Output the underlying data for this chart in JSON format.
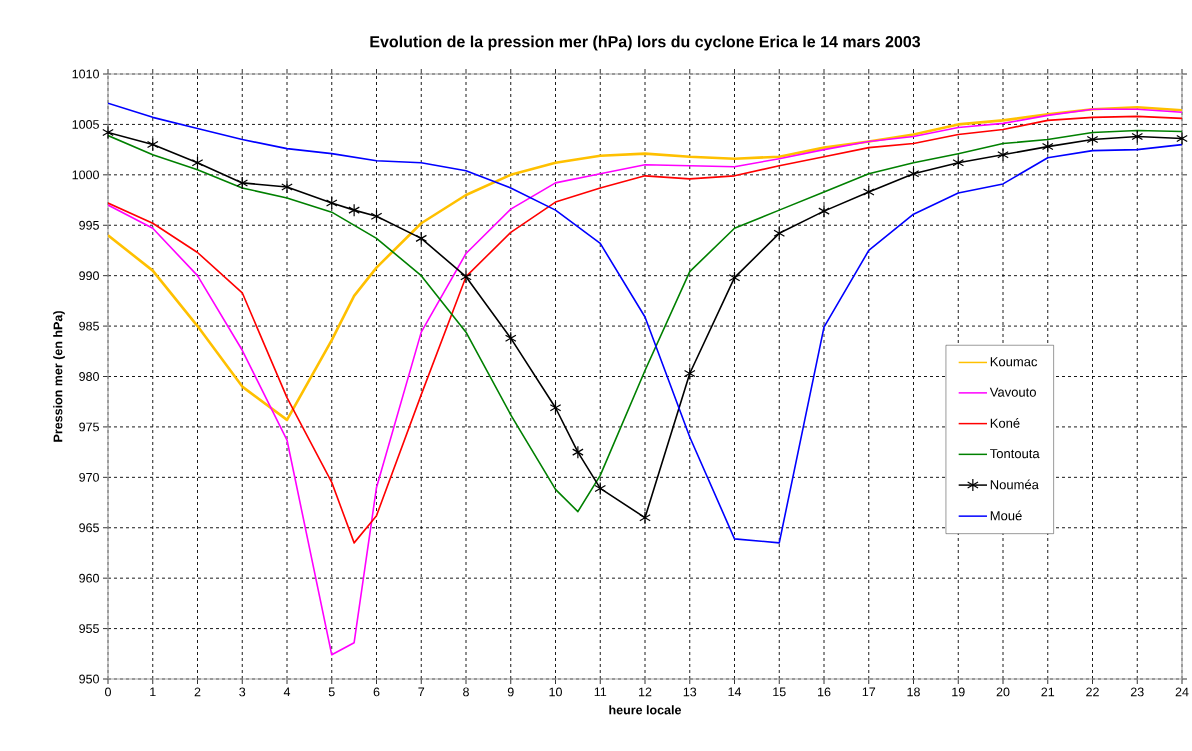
{
  "chart_data": {
    "type": "line",
    "title": "Evolution de la pression mer (hPa) lors du cyclone Erica le 14 mars 2003",
    "xlabel": "heure locale",
    "ylabel": "Pression mer (en hPa)",
    "xlim": [
      0,
      24
    ],
    "xticks": [
      0,
      1,
      2,
      3,
      4,
      5,
      6,
      7,
      8,
      9,
      10,
      11,
      12,
      13,
      14,
      15,
      16,
      17,
      18,
      19,
      20,
      21,
      22,
      23,
      24
    ],
    "ylim": [
      950,
      1010
    ],
    "yticks": [
      950,
      955,
      960,
      965,
      970,
      975,
      980,
      985,
      990,
      995,
      1000,
      1005,
      1010
    ],
    "grid": true,
    "legend": "right",
    "line_style": "solid",
    "series": [
      {
        "name": "Koumac",
        "color": "#ffc000",
        "x": [
          0,
          1,
          2,
          3,
          4,
          5,
          5.5,
          6,
          7,
          8,
          9,
          10,
          11,
          12,
          13,
          14,
          15,
          16,
          17,
          18,
          19,
          20,
          21,
          22,
          23,
          24
        ],
        "values": [
          994,
          990.5,
          985,
          979,
          975.7,
          983.6,
          988,
          990.8,
          995.2,
          998,
          1000,
          1001.2,
          1001.9,
          1002.1,
          1001.8,
          1001.6,
          1001.8,
          1002.7,
          1003.3,
          1004,
          1005,
          1005.4,
          1006,
          1006.5,
          1006.7,
          1006.4
        ]
      },
      {
        "name": "Vavouto",
        "color": "#ff00ff",
        "x": [
          0,
          1,
          2,
          3,
          4,
          5,
          5.5,
          6,
          7,
          8,
          9,
          10,
          11,
          12,
          13,
          14,
          15,
          16,
          17,
          18,
          19,
          20,
          21,
          22,
          23,
          24
        ],
        "values": [
          997,
          994.7,
          990,
          982.6,
          973.7,
          952.4,
          953.6,
          969,
          984.4,
          992.2,
          996.6,
          999.2,
          1000.1,
          1001,
          1000.9,
          1000.8,
          1001.6,
          1002.5,
          1003.3,
          1003.8,
          1004.7,
          1005.1,
          1005.9,
          1006.5,
          1006.5,
          1006.2
        ]
      },
      {
        "name": "Koné",
        "color": "#ff0000",
        "x": [
          0,
          1,
          2,
          3,
          4,
          5,
          5.5,
          6,
          7,
          8,
          9,
          10,
          11,
          12,
          13,
          14,
          15,
          16,
          17,
          18,
          19,
          20,
          21,
          22,
          23,
          24
        ],
        "values": [
          997.2,
          995.2,
          992.3,
          988.3,
          977.9,
          969.5,
          963.5,
          966.2,
          978.2,
          989.9,
          994.3,
          997.3,
          998.7,
          999.9,
          999.6,
          999.9,
          1000.9,
          1001.8,
          1002.7,
          1003.1,
          1004,
          1004.5,
          1005.4,
          1005.7,
          1005.8,
          1005.6
        ]
      },
      {
        "name": "Tontouta",
        "color": "#008000",
        "x": [
          0,
          1,
          2,
          3,
          4,
          5,
          6,
          7,
          8,
          9,
          10,
          10.5,
          11,
          12,
          13,
          14,
          15,
          16,
          17,
          18,
          19,
          20,
          21,
          22,
          23,
          24
        ],
        "values": [
          1003.9,
          1002,
          1000.5,
          998.7,
          997.7,
          996.3,
          993.7,
          990,
          984.4,
          976.2,
          968.8,
          966.6,
          970.2,
          980.6,
          990.4,
          994.7,
          996.5,
          998.3,
          1000.1,
          1001.2,
          1002.1,
          1003.1,
          1003.5,
          1004.2,
          1004.4,
          1004.3
        ]
      },
      {
        "name": "Nouméa",
        "color": "#000000",
        "marker": "cross",
        "x": [
          0,
          1,
          2,
          3,
          4,
          5,
          5.5,
          6,
          7,
          8,
          9,
          10,
          10.5,
          11,
          12,
          13,
          14,
          15,
          16,
          17,
          18,
          19,
          20,
          21,
          22,
          23,
          24
        ],
        "values": [
          1004.2,
          1003,
          1001.2,
          999.2,
          998.8,
          997.2,
          996.5,
          995.9,
          993.7,
          989.9,
          983.8,
          976.9,
          972.5,
          968.9,
          966,
          980.3,
          989.8,
          994.2,
          996.4,
          998.3,
          1000.1,
          1001.2,
          1002,
          1002.8,
          1003.5,
          1003.8,
          1003.6
        ]
      },
      {
        "name": "Moué",
        "color": "#0000ff",
        "x": [
          0,
          1,
          2,
          3,
          4,
          5,
          6,
          7,
          8,
          9,
          10,
          11,
          12,
          13,
          14,
          15,
          16,
          17,
          18,
          19,
          20,
          21,
          22,
          23,
          24
        ],
        "values": [
          1007.1,
          1005.7,
          1004.6,
          1003.5,
          1002.6,
          1002.1,
          1001.4,
          1001.2,
          1000.4,
          998.7,
          996.5,
          993.2,
          985.9,
          974,
          963.9,
          963.5,
          984.9,
          992.5,
          996.1,
          998.2,
          999.1,
          1001.7,
          1002.4,
          1002.5,
          1003
        ]
      }
    ]
  }
}
